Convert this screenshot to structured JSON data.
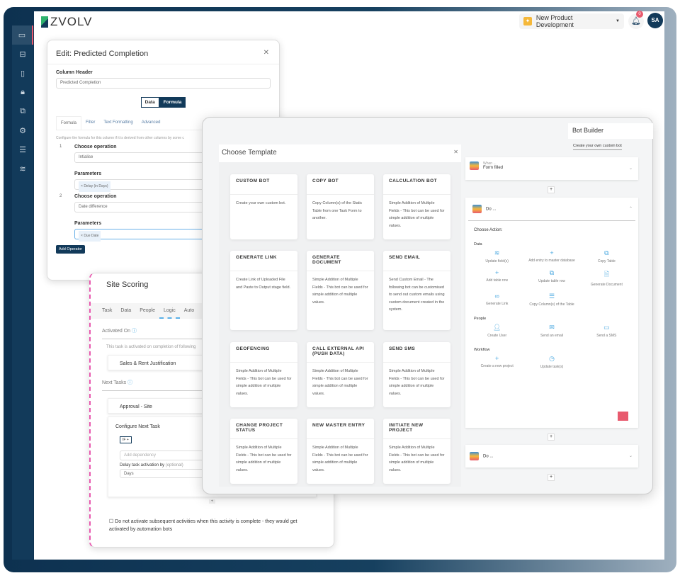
{
  "app": {
    "brand": "ZVOLV",
    "project": "New Product Development",
    "notifications": "0",
    "user_initials": "SA",
    "accent": "#123a5a",
    "alert": "#e85a6e"
  },
  "sidebar": {
    "items": [
      {
        "icon": "layout-icon",
        "glyph": "▭"
      },
      {
        "icon": "inbox-icon",
        "glyph": "⊟"
      },
      {
        "icon": "clipboard-icon",
        "glyph": "▯"
      },
      {
        "icon": "lock-icon",
        "glyph": "🔒︎"
      },
      {
        "icon": "copy-icon",
        "glyph": "⧉"
      },
      {
        "icon": "gear-icon",
        "glyph": "⚙"
      },
      {
        "icon": "server-icon",
        "glyph": "☰"
      },
      {
        "icon": "layers-icon",
        "glyph": "≋"
      }
    ]
  },
  "edit": {
    "title": "Edit: Predicted Completion",
    "column_header_label": "Column Header",
    "column_header_value": "Predicted Completion",
    "toggle": [
      "Data",
      "Formula"
    ],
    "tabs": [
      "Formula",
      "Filter",
      "Text Formatting",
      "Advanced"
    ],
    "hint": "Configure the formula for this column if it is derived from other columns by some c",
    "ops": [
      {
        "n": "1",
        "label": "Choose operation",
        "value": "Intialise",
        "params_label": "Parameters",
        "chip": "Delay (in Days)"
      },
      {
        "n": "2",
        "label": "Choose operation",
        "value": "Date difference",
        "params_label": "Parameters",
        "chip": "Due Date"
      }
    ],
    "add_operator": "Add Operator"
  },
  "site": {
    "title": "Site Scoring",
    "tabs": [
      "Task",
      "Data",
      "People",
      "Logic",
      "Auto"
    ],
    "activated_on": "Activated On",
    "activated_hint": "This task is activated on completion of following",
    "activated_task": "Sales & Rent Justification",
    "next_tasks": "Next Tasks",
    "next_task": "Approval - Site",
    "configure": "Configure Next Task",
    "if_btn": "IF +",
    "dependency_placeholder": "Add dependency",
    "delay_label": "Delay task activation by",
    "delay_optional": "(optional)",
    "delay_value": "Days",
    "plus": "+",
    "checkbox": "Do not activate subsequent activities when this activity is complete - they would get activated by automation bots"
  },
  "templates": {
    "title": "Choose Template",
    "cards": [
      {
        "t": "CUSTOM BOT",
        "d": "Create your own custom bot."
      },
      {
        "t": "COPY BOT",
        "d": "Copy Column(s) of the Static Table from one Task Form to another."
      },
      {
        "t": "CALCULATION BOT",
        "d": "Simple Addition of Multiple Fields - This bot can be used for simple addition of multiple values."
      },
      {
        "t": "GENERATE LINK",
        "d": "Create Link of Uploaded File and Paste to Output stage field."
      },
      {
        "t": "GENERATE DOCUMENT",
        "d": "Simple Addition of Multiple Fields - This bot can be used for simple addition of multiple values."
      },
      {
        "t": "SEND EMAIL",
        "d": "Send Custom Email - The following bot can be customised to send out custom emails using custom document created in the system."
      },
      {
        "t": "GEOFENCING",
        "d": "Simple Addition of Multiple Fields - This bot can be used for simple addition of multiple values."
      },
      {
        "t": "CALL EXTERNAL API (PUSH DATA)",
        "d": "Simple Addition of Multiple Fields - This bot can be used for simple addition of multiple values."
      },
      {
        "t": "SEND SMS",
        "d": "Simple Addition of Multiple Fields - This bot can be used for simple addition of multiple values."
      },
      {
        "t": "CHANGE PROJECT STATUS",
        "d": "Simple Addition of Multiple Fields - This bot can be used for simple addition of multiple values."
      },
      {
        "t": "NEW MASTER ENTRY",
        "d": "Simple Addition of Multiple Fields - This bot can be used for simple addition of multiple values."
      },
      {
        "t": "INITIATE NEW PROJECT",
        "d": "Simple Addition of Multiple Fields - This bot can be used for simple addition of multiple values."
      }
    ]
  },
  "bot": {
    "title": "Bot Builder",
    "custom_link": "Create your own custom bot",
    "when": "When ...",
    "trigger": "Form filled",
    "do": "Do ...",
    "choose_action": "Choose Action:",
    "groups": [
      {
        "name": "Data",
        "actions": [
          {
            "g": "≋",
            "l": "Update field(s)"
          },
          {
            "g": "+",
            "l": "Add entry to master database"
          },
          {
            "g": "⧉",
            "l": "Copy Table"
          },
          {
            "g": "+",
            "l": "Add table row"
          },
          {
            "g": "⧉",
            "l": "Update table row"
          },
          {
            "g": "🗎︎",
            "l": "Generate Document"
          },
          {
            "g": "∞",
            "l": "Generate Link"
          },
          {
            "g": "☰",
            "l": "Copy Column(s) of the Table"
          }
        ]
      },
      {
        "name": "People",
        "actions": [
          {
            "g": "👤︎",
            "l": "Create User"
          },
          {
            "g": "✉",
            "l": "Send an email"
          },
          {
            "g": "▭",
            "l": "Send a SMS"
          }
        ]
      },
      {
        "name": "Workflow",
        "actions": [
          {
            "g": "+",
            "l": "Create a new project"
          },
          {
            "g": "◷",
            "l": "Update task(s)"
          }
        ]
      }
    ]
  }
}
